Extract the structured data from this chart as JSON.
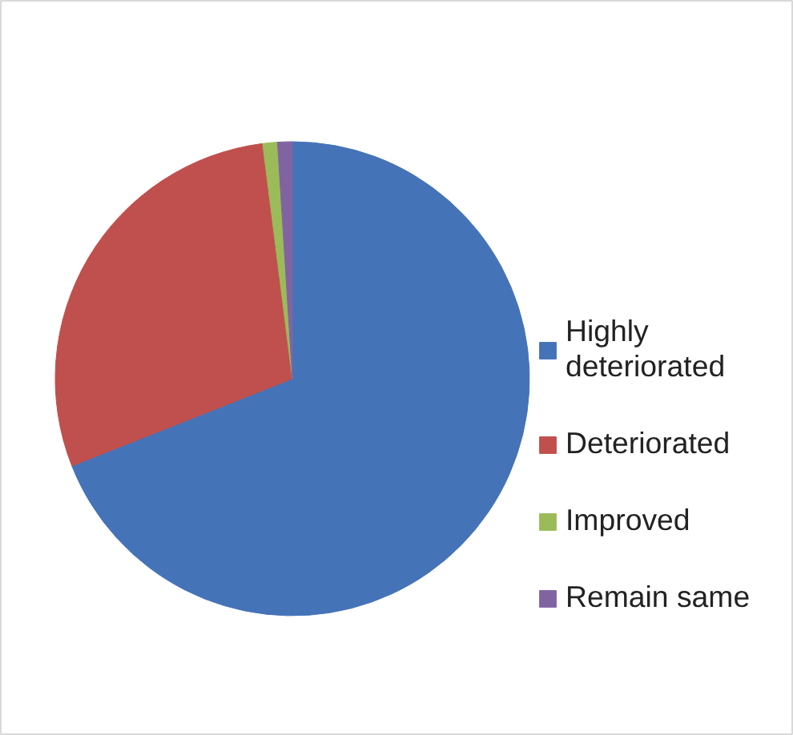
{
  "chart_data": {
    "type": "pie",
    "categories": [
      "Highly deteriorated",
      "Deteriorated",
      "Improved",
      "Remain same"
    ],
    "values": [
      69,
      29,
      1,
      1
    ],
    "colors": [
      "#4573b8",
      "#c0504d",
      "#9bbb59",
      "#8064a2"
    ],
    "legend": "right"
  }
}
